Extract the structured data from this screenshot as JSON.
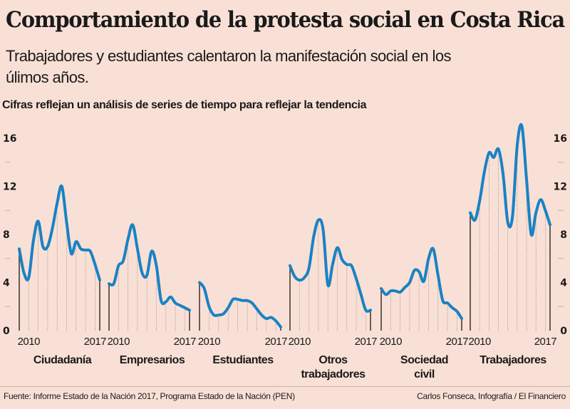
{
  "header": {
    "title": "Comportamiento de la protesta social en Costa Rica",
    "subtitle": "Trabajadores y estudiantes calentaron la manifestación social en  los úlimos años.",
    "note": "Cifras reflejan un análisis de series de tiempo para reflejar la tendencia"
  },
  "footer": {
    "source": "Fuente: Informe Estado de la Nación 2017, Programa Estado de la Nación (PEN)",
    "credit": "Carlos Fonseca, Infografía / El Financiero"
  },
  "colors": {
    "background": "#f9e0d6",
    "line": "#1a82c4",
    "text": "#1a1a1a"
  },
  "chart_data": {
    "type": "line",
    "title": "Cifras reflejan un análisis de series de tiempo para reflejar la tendencia",
    "xlabel": "",
    "ylabel": "",
    "ylim": [
      0,
      16
    ],
    "yticks": [
      0,
      4,
      8,
      12,
      16
    ],
    "ytick_labels": [
      "0",
      "4",
      "8",
      "12",
      "16"
    ],
    "x_tick_labels": [
      "2010",
      "2017"
    ],
    "grid": false,
    "legend": "none",
    "x": [
      2009.0,
      2009.5,
      2010.0,
      2010.5,
      2011.0,
      2011.5,
      2012.0,
      2012.5,
      2013.0,
      2013.5,
      2014.0,
      2014.5,
      2015.0,
      2015.5,
      2016.0,
      2016.5,
      2017.0,
      2017.5
    ],
    "series": [
      {
        "name": "Ciudadanía",
        "label_lines": [
          "Ciudadanía"
        ],
        "values": [
          6.8,
          4.8,
          4.4,
          7.5,
          9.1,
          7.0,
          7.0,
          8.5,
          10.6,
          12.0,
          9.0,
          6.4,
          7.4,
          6.8,
          6.7,
          6.6,
          5.5,
          4.2
        ]
      },
      {
        "name": "Empresarios",
        "label_lines": [
          "Empresarios"
        ],
        "values": [
          3.9,
          3.9,
          5.4,
          5.8,
          7.6,
          8.8,
          6.8,
          4.8,
          4.6,
          6.6,
          5.4,
          2.5,
          2.4,
          2.8,
          2.3,
          2.1,
          1.9,
          1.7
        ]
      },
      {
        "name": "Estudiantes",
        "label_lines": [
          "Estudiantes"
        ],
        "values": [
          4.0,
          3.5,
          2.0,
          1.3,
          1.3,
          1.4,
          1.9,
          2.6,
          2.6,
          2.5,
          2.5,
          2.3,
          1.8,
          1.3,
          1.0,
          1.1,
          0.8,
          0.3
        ]
      },
      {
        "name": "Otros trabajadores",
        "label_lines": [
          "Otros",
          "trabajadores"
        ],
        "values": [
          5.4,
          4.5,
          4.2,
          4.4,
          5.2,
          7.8,
          9.2,
          8.4,
          3.8,
          5.5,
          6.9,
          5.9,
          5.5,
          5.4,
          4.3,
          3.0,
          1.7,
          1.7
        ]
      },
      {
        "name": "Sociedad civil",
        "label_lines": [
          "Sociedad",
          "civil"
        ],
        "values": [
          3.5,
          3.0,
          3.3,
          3.3,
          3.2,
          3.6,
          4.0,
          5.0,
          4.9,
          4.1,
          6.0,
          6.8,
          4.6,
          2.5,
          2.3,
          1.9,
          1.6,
          1.0
        ]
      },
      {
        "name": "Trabajadores",
        "label_lines": [
          "Trabajadores"
        ],
        "values": [
          9.8,
          9.2,
          10.8,
          13.2,
          14.8,
          14.4,
          15.1,
          13.0,
          9.0,
          9.5,
          15.4,
          17.0,
          12.5,
          8.0,
          9.8,
          10.9,
          10.0,
          8.8
        ]
      }
    ]
  }
}
